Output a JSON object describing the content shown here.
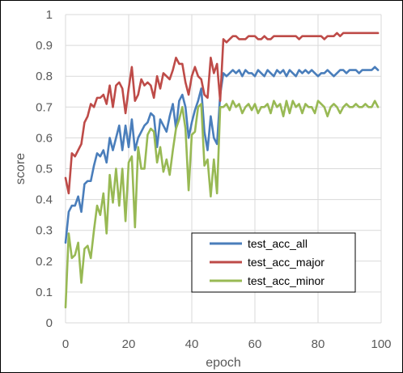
{
  "chart_data": {
    "type": "line",
    "title": "",
    "xlabel": "epoch",
    "ylabel": "score",
    "xlim": [
      0,
      100
    ],
    "ylim": [
      0,
      1
    ],
    "xticks": [
      0,
      20,
      40,
      60,
      80,
      100
    ],
    "yticks": [
      0,
      0.1,
      0.2,
      0.3,
      0.4,
      0.5,
      0.6,
      0.7,
      0.8,
      0.9,
      1
    ],
    "grid": true,
    "legend_position": "bottom-right",
    "x": [
      0,
      1,
      2,
      3,
      4,
      5,
      6,
      7,
      8,
      9,
      10,
      11,
      12,
      13,
      14,
      15,
      16,
      17,
      18,
      19,
      20,
      21,
      22,
      23,
      24,
      25,
      26,
      27,
      28,
      29,
      30,
      31,
      32,
      33,
      34,
      35,
      36,
      37,
      38,
      39,
      40,
      41,
      42,
      43,
      44,
      45,
      46,
      47,
      48,
      49,
      50,
      51,
      52,
      53,
      54,
      55,
      56,
      57,
      58,
      59,
      60,
      61,
      62,
      63,
      64,
      65,
      66,
      67,
      68,
      69,
      70,
      71,
      72,
      73,
      74,
      75,
      76,
      77,
      78,
      79,
      80,
      81,
      82,
      83,
      84,
      85,
      86,
      87,
      88,
      89,
      90,
      91,
      92,
      93,
      94,
      95,
      96,
      97,
      98,
      99
    ],
    "series": [
      {
        "name": "test_acc_all",
        "color": "#4a7ebb",
        "values": [
          0.26,
          0.36,
          0.38,
          0.38,
          0.41,
          0.36,
          0.45,
          0.46,
          0.46,
          0.51,
          0.55,
          0.54,
          0.56,
          0.52,
          0.6,
          0.56,
          0.6,
          0.64,
          0.56,
          0.64,
          0.57,
          0.66,
          0.56,
          0.6,
          0.62,
          0.64,
          0.65,
          0.68,
          0.67,
          0.57,
          0.66,
          0.64,
          0.62,
          0.67,
          0.71,
          0.63,
          0.72,
          0.74,
          0.7,
          0.6,
          0.65,
          0.69,
          0.72,
          0.76,
          0.62,
          0.56,
          0.67,
          0.6,
          0.58,
          0.74,
          0.81,
          0.8,
          0.81,
          0.82,
          0.81,
          0.82,
          0.8,
          0.82,
          0.81,
          0.81,
          0.8,
          0.82,
          0.81,
          0.8,
          0.82,
          0.81,
          0.8,
          0.82,
          0.81,
          0.82,
          0.8,
          0.82,
          0.81,
          0.8,
          0.82,
          0.81,
          0.82,
          0.81,
          0.82,
          0.81,
          0.8,
          0.81,
          0.81,
          0.82,
          0.81,
          0.8,
          0.81,
          0.82,
          0.82,
          0.81,
          0.82,
          0.82,
          0.82,
          0.81,
          0.82,
          0.82,
          0.82,
          0.82,
          0.83,
          0.82
        ]
      },
      {
        "name": "test_acc_major",
        "color": "#be4b48",
        "values": [
          0.47,
          0.42,
          0.55,
          0.54,
          0.56,
          0.58,
          0.65,
          0.67,
          0.71,
          0.7,
          0.73,
          0.73,
          0.74,
          0.71,
          0.77,
          0.7,
          0.77,
          0.78,
          0.76,
          0.68,
          0.76,
          0.83,
          0.72,
          0.74,
          0.79,
          0.77,
          0.78,
          0.77,
          0.73,
          0.8,
          0.76,
          0.81,
          0.8,
          0.79,
          0.82,
          0.86,
          0.84,
          0.84,
          0.78,
          0.74,
          0.8,
          0.83,
          0.8,
          0.79,
          0.74,
          0.73,
          0.86,
          0.81,
          0.84,
          0.72,
          0.92,
          0.91,
          0.92,
          0.93,
          0.93,
          0.92,
          0.92,
          0.92,
          0.93,
          0.93,
          0.93,
          0.92,
          0.92,
          0.93,
          0.92,
          0.92,
          0.93,
          0.93,
          0.93,
          0.93,
          0.93,
          0.93,
          0.93,
          0.93,
          0.92,
          0.93,
          0.93,
          0.93,
          0.93,
          0.93,
          0.93,
          0.93,
          0.92,
          0.93,
          0.93,
          0.93,
          0.94,
          0.93,
          0.94,
          0.94,
          0.94,
          0.94,
          0.94,
          0.94,
          0.94,
          0.94,
          0.94,
          0.94,
          0.94,
          0.94
        ]
      },
      {
        "name": "test_acc_minor",
        "color": "#98b954",
        "values": [
          0.05,
          0.29,
          0.21,
          0.22,
          0.26,
          0.13,
          0.24,
          0.25,
          0.21,
          0.3,
          0.38,
          0.35,
          0.42,
          0.29,
          0.48,
          0.39,
          0.5,
          0.38,
          0.5,
          0.33,
          0.52,
          0.54,
          0.31,
          0.57,
          0.5,
          0.5,
          0.61,
          0.63,
          0.62,
          0.52,
          0.57,
          0.49,
          0.53,
          0.48,
          0.56,
          0.63,
          0.66,
          0.7,
          0.63,
          0.43,
          0.61,
          0.62,
          0.7,
          0.71,
          0.51,
          0.53,
          0.41,
          0.53,
          0.42,
          0.7,
          0.7,
          0.71,
          0.69,
          0.72,
          0.7,
          0.71,
          0.68,
          0.7,
          0.71,
          0.69,
          0.71,
          0.68,
          0.7,
          0.7,
          0.71,
          0.68,
          0.72,
          0.7,
          0.71,
          0.67,
          0.72,
          0.68,
          0.72,
          0.7,
          0.71,
          0.68,
          0.71,
          0.7,
          0.7,
          0.68,
          0.72,
          0.71,
          0.7,
          0.67,
          0.7,
          0.71,
          0.7,
          0.68,
          0.7,
          0.71,
          0.7,
          0.7,
          0.71,
          0.7,
          0.7,
          0.71,
          0.7,
          0.7,
          0.72,
          0.7
        ]
      }
    ]
  }
}
